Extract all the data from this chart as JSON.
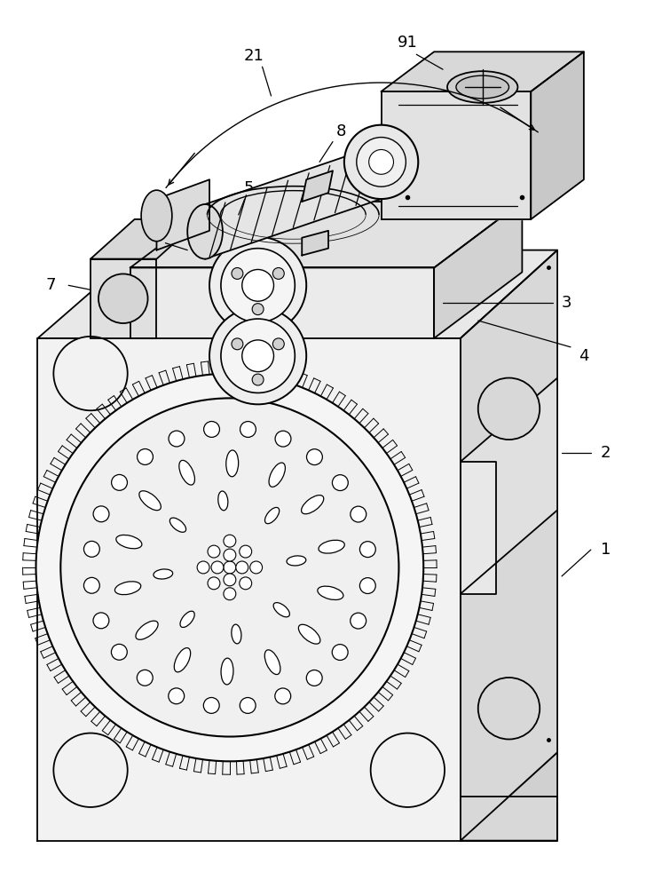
{
  "bg_color": "#ffffff",
  "line_color": "#000000",
  "line_width": 1.3,
  "fig_width": 7.46,
  "fig_height": 10.0,
  "label_fontsize": 13
}
